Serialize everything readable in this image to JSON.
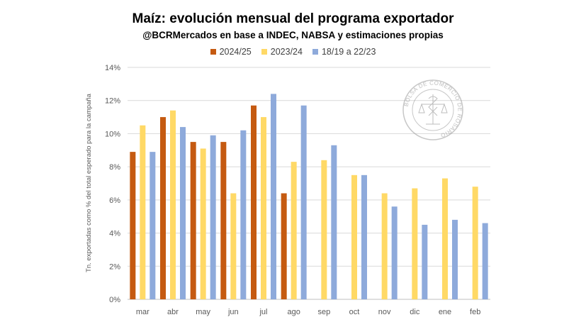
{
  "chart_data": {
    "type": "bar",
    "title": "Maíz: evolución mensual del programa exportador",
    "subtitle": "@BCRMercados en base a  INDEC, NABSA y estimaciones propias",
    "ylabel": "Tn. exportadas como % del total esperado para la campaña",
    "xlabel": "",
    "categories": [
      "mar",
      "abr",
      "may",
      "jun",
      "jul",
      "ago",
      "sep",
      "oct",
      "nov",
      "dic",
      "ene",
      "feb"
    ],
    "ylim": [
      0,
      14
    ],
    "yticks": [
      "0%",
      "2%",
      "4%",
      "6%",
      "8%",
      "10%",
      "12%",
      "14%"
    ],
    "grid": true,
    "legend_position": "top",
    "series": [
      {
        "name": "2024/25",
        "color": "#c55a11",
        "values": [
          8.9,
          11.0,
          9.5,
          9.5,
          11.7,
          6.4,
          null,
          null,
          null,
          null,
          null,
          null
        ]
      },
      {
        "name": "2023/24",
        "color": "#ffd966",
        "values": [
          10.5,
          11.4,
          9.1,
          6.4,
          11.0,
          8.3,
          8.4,
          7.5,
          6.4,
          6.7,
          7.3,
          6.8
        ]
      },
      {
        "name": "18/19 a 22/23",
        "color": "#8eaadb",
        "values": [
          8.9,
          10.4,
          9.9,
          10.2,
          12.4,
          11.7,
          9.3,
          7.5,
          5.6,
          4.5,
          4.8,
          4.6
        ]
      }
    ]
  },
  "watermark": {
    "text": "BOLSA DE COMERCIO DE ROSARIO",
    "icon": "bcr-seal-icon"
  }
}
